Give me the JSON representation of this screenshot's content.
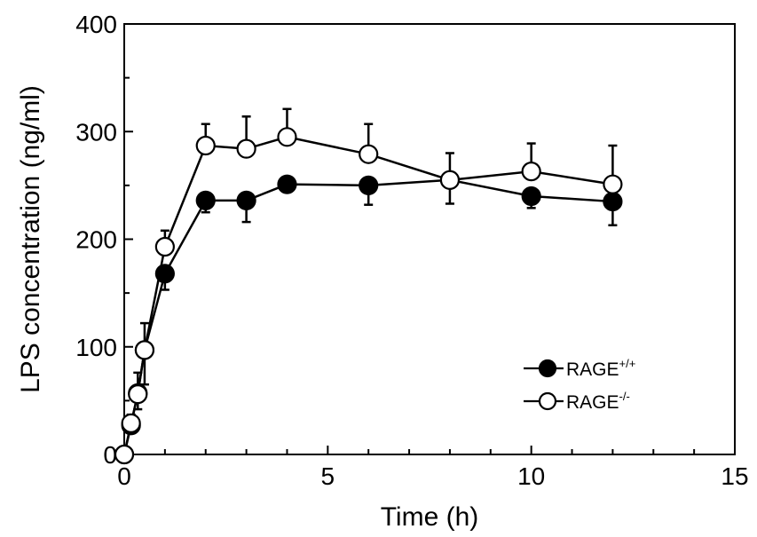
{
  "chart_data": {
    "type": "line",
    "xlabel": "Time (h)",
    "ylabel": "LPS concentration (ng/ml)",
    "xlim": [
      0,
      15
    ],
    "ylim": [
      0,
      400
    ],
    "xticks": [
      0,
      5,
      10,
      15
    ],
    "yticks": [
      0,
      100,
      200,
      300,
      400
    ],
    "xtick_labels": [
      "0",
      "5",
      "10",
      "15"
    ],
    "ytick_labels": [
      "0",
      "100",
      "200",
      "300",
      "400"
    ],
    "grid": false,
    "legend_position": "bottom-right",
    "series": [
      {
        "name_base": "RAGE",
        "name_sup": "+/+",
        "marker": "filled-circle",
        "color": "#000000",
        "x": [
          0,
          0.167,
          0.333,
          0.5,
          1,
          2,
          3,
          4,
          6,
          8,
          10,
          12
        ],
        "y": [
          0,
          27,
          57,
          97,
          168,
          236,
          236,
          251,
          250,
          255,
          240,
          235
        ],
        "err": [
          3,
          6,
          15,
          32,
          15,
          11,
          20,
          5,
          18,
          22,
          11,
          22
        ]
      },
      {
        "name_base": "RAGE",
        "name_sup": "-/-",
        "marker": "open-circle",
        "color": "#000000",
        "x": [
          0,
          0.167,
          0.333,
          0.5,
          1,
          2,
          3,
          4,
          6,
          8,
          10,
          12
        ],
        "y": [
          0,
          29,
          56,
          97,
          193,
          287,
          284,
          295,
          279,
          255,
          263,
          251
        ],
        "err": [
          3,
          8,
          20,
          25,
          15,
          20,
          30,
          26,
          28,
          25,
          26,
          36
        ]
      }
    ]
  }
}
